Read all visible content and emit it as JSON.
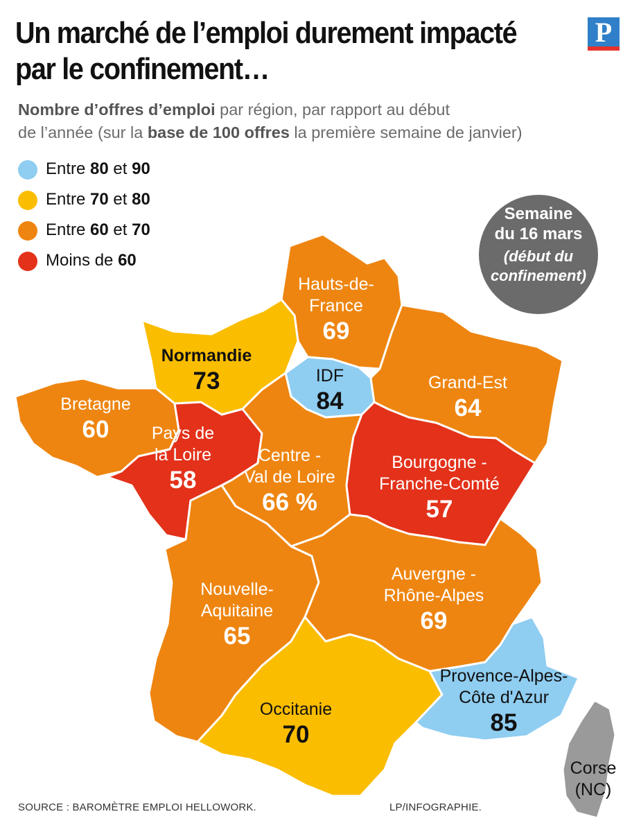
{
  "title": {
    "line1": "Un marché de l’emploi durement impacté",
    "line2": "par le confinement…"
  },
  "logo": {
    "letter": "P",
    "bg_color": "#2f80c9",
    "bar_color": "#e8322c"
  },
  "subtitle": {
    "bold1": "Nombre d’offres d’emploi",
    "text1": " par région, par rapport au début",
    "text2": "de l’année (sur la ",
    "bold2": "base de 100 offres",
    "text3": " la première semaine de janvier)"
  },
  "legend": [
    {
      "pre": "Entre ",
      "a": "80",
      "mid": " et ",
      "b": "90",
      "color": "#8fcdf1"
    },
    {
      "pre": "Entre ",
      "a": "70",
      "mid": " et ",
      "b": "80",
      "color": "#fbbd00"
    },
    {
      "pre": "Entre ",
      "a": "60",
      "mid": " et ",
      "b": "70",
      "color": "#ee8510"
    },
    {
      "pre": "Moins de ",
      "a": "60",
      "mid": "",
      "b": "",
      "color": "#e3311a"
    }
  ],
  "badge": {
    "line1": "Semaine",
    "line2": "du 16 mars",
    "line3": "(début du",
    "line4": "confinement)",
    "color": "#6b6b6b"
  },
  "regions": {
    "hauts_de_france": {
      "name1": "Hauts-de-",
      "name2": "France",
      "value": "69",
      "color": "#ee8510"
    },
    "normandie": {
      "name1": "Normandie",
      "value": "73",
      "color": "#fbbd00"
    },
    "idf": {
      "name1": "IDF",
      "value": "84",
      "color": "#8fcdf1"
    },
    "grand_est": {
      "name1": "Grand-Est",
      "value": "64",
      "color": "#ee8510"
    },
    "bretagne": {
      "name1": "Bretagne",
      "value": "60",
      "color": "#ee8510"
    },
    "pays_de_la_loire": {
      "name1": "Pays de",
      "name2": "la Loire",
      "value": "58",
      "color": "#e3311a"
    },
    "centre_val_de_loire": {
      "name1": "Centre -",
      "name2": "Val de Loire",
      "value": "66 %",
      "color": "#ee8510"
    },
    "bourgogne_franche_comte": {
      "name1": "Bourgogne -",
      "name2": "Franche-Comté",
      "value": "57",
      "color": "#e3311a"
    },
    "nouvelle_aquitaine": {
      "name1": "Nouvelle-",
      "name2": "Aquitaine",
      "value": "65",
      "color": "#ee8510"
    },
    "auvergne_rhone_alpes": {
      "name1": "Auvergne -",
      "name2": "Rhône-Alpes",
      "value": "69",
      "color": "#ee8510"
    },
    "occitanie": {
      "name1": "Occitanie",
      "value": "70",
      "color": "#fbbd00"
    },
    "paca": {
      "name1": "Provence-Alpes-",
      "name2": "Côte d'Azur",
      "value": "85",
      "color": "#8fcdf1"
    },
    "corse": {
      "name1": "Corse",
      "name2": "(NC)",
      "color": "#9a9a9a"
    }
  },
  "footer": {
    "source": "SOURCE : BAROMÈTRE EMPLOI HELLOWORK.",
    "credit": "LP/INFOGRAPHIE."
  }
}
